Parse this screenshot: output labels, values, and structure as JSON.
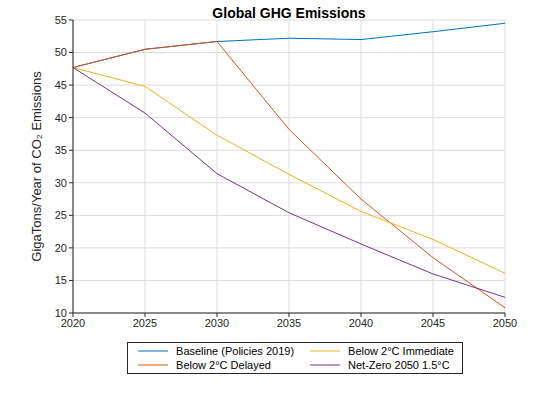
{
  "chart_data": {
    "type": "line",
    "title": "Global GHG Emissions",
    "y_label": "GigaTons/Year of CO₂ Emissions",
    "x": [
      2020,
      2025,
      2030,
      2035,
      2040,
      2045,
      2050
    ],
    "series": [
      {
        "name": "Baseline (Policies 2019)",
        "color": "#0072BD",
        "values": [
          47.7,
          50.5,
          51.7,
          52.2,
          52.0,
          53.2,
          54.5
        ]
      },
      {
        "name": "Below 2°C Delayed",
        "color": "#D95319",
        "values": [
          47.7,
          50.5,
          51.7,
          38.2,
          27.5,
          18.5,
          10.8
        ]
      },
      {
        "name": "Below 2°C Immediate",
        "color": "#EDB120",
        "values": [
          47.7,
          44.8,
          37.3,
          31.3,
          25.6,
          21.3,
          16.1
        ]
      },
      {
        "name": "Net-Zero 2050 1.5°C",
        "color": "#7E2F8E",
        "values": [
          47.7,
          40.7,
          31.4,
          25.4,
          20.6,
          16.0,
          12.4
        ]
      }
    ],
    "xlim": [
      2020,
      2050
    ],
    "xticks": [
      2020,
      2025,
      2030,
      2035,
      2040,
      2045,
      2050
    ],
    "ylim": [
      10,
      55
    ],
    "yticks": [
      10,
      15,
      20,
      25,
      30,
      35,
      40,
      45,
      50,
      55
    ],
    "grid": true,
    "legend": "bottom"
  }
}
